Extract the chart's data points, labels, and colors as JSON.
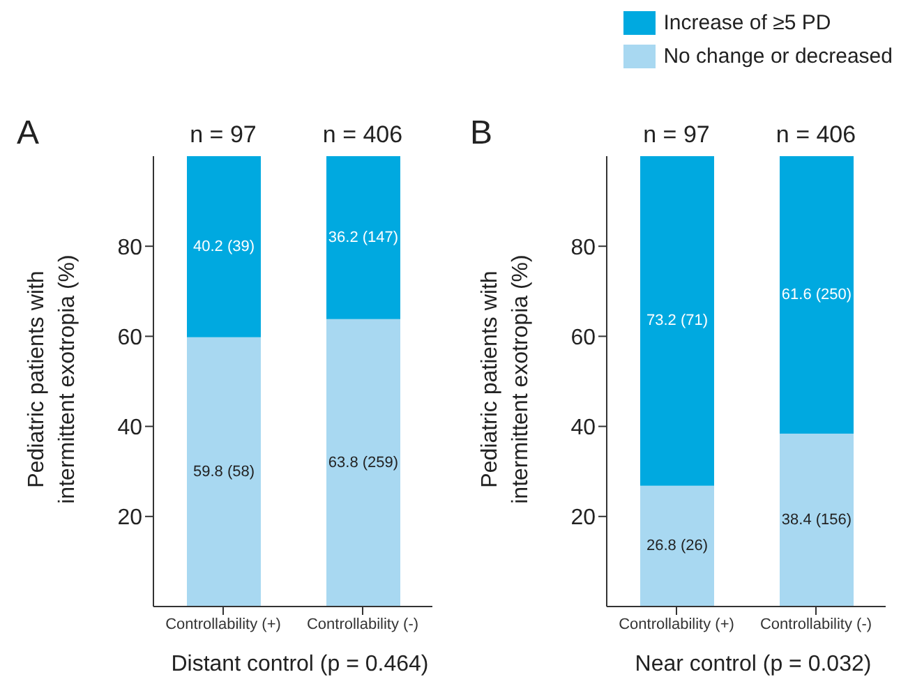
{
  "chart_data": [
    {
      "type": "bar",
      "title": "A",
      "stacked": true,
      "categories": [
        "Controllability (+)",
        "Controllability (-)"
      ],
      "xlabel": "Distant control (p = 0.464)",
      "ylabel": "Pediatric patients with intermittent exotropia (%)",
      "ylim": [
        0,
        100
      ],
      "yticks": [
        20,
        40,
        60,
        80
      ],
      "grid": false,
      "annotations": [
        {
          "text": "n = 97",
          "x": "Controllability (+)",
          "y": 100
        },
        {
          "text": "n = 406",
          "x": "Controllability (-)",
          "y": 100
        }
      ],
      "series": [
        {
          "color": "#a8d8f1",
          "values": [
            59.8,
            63.8
          ],
          "value_labels": [
            "59.8 (58)",
            "63.8 (259)"
          ]
        },
        {
          "color": "#00a9e0",
          "values": [
            40.2,
            36.2
          ],
          "value_labels": [
            "40.2 (39)",
            "36.2 (147)"
          ]
        }
      ]
    },
    {
      "type": "bar",
      "title": "B",
      "stacked": true,
      "categories": [
        "Controllability (+)",
        "Controllability (-)"
      ],
      "xlabel": "Near control (p = 0.032)",
      "ylabel": "Pediatric patients with intermittent exotropia (%)",
      "ylim": [
        0,
        100
      ],
      "yticks": [
        20,
        40,
        60,
        80
      ],
      "grid": false,
      "legend": "top right",
      "annotations": [
        {
          "text": "n = 97",
          "x": "Controllability (+)",
          "y": 100
        },
        {
          "text": "n = 406",
          "x": "Controllability (-)",
          "y": 100
        }
      ],
      "series": [
        {
          "name": "No change or decreased",
          "color": "#a8d8f1",
          "values": [
            26.8,
            38.4
          ],
          "value_labels": [
            "26.8 (26)",
            "38.4 (156)"
          ]
        },
        {
          "name": "Increase of ≥5 PD",
          "color": "#00a9e0",
          "values": [
            73.2,
            61.6
          ],
          "value_labels": [
            "73.2 (71)",
            "61.6 (250)"
          ]
        }
      ]
    }
  ]
}
